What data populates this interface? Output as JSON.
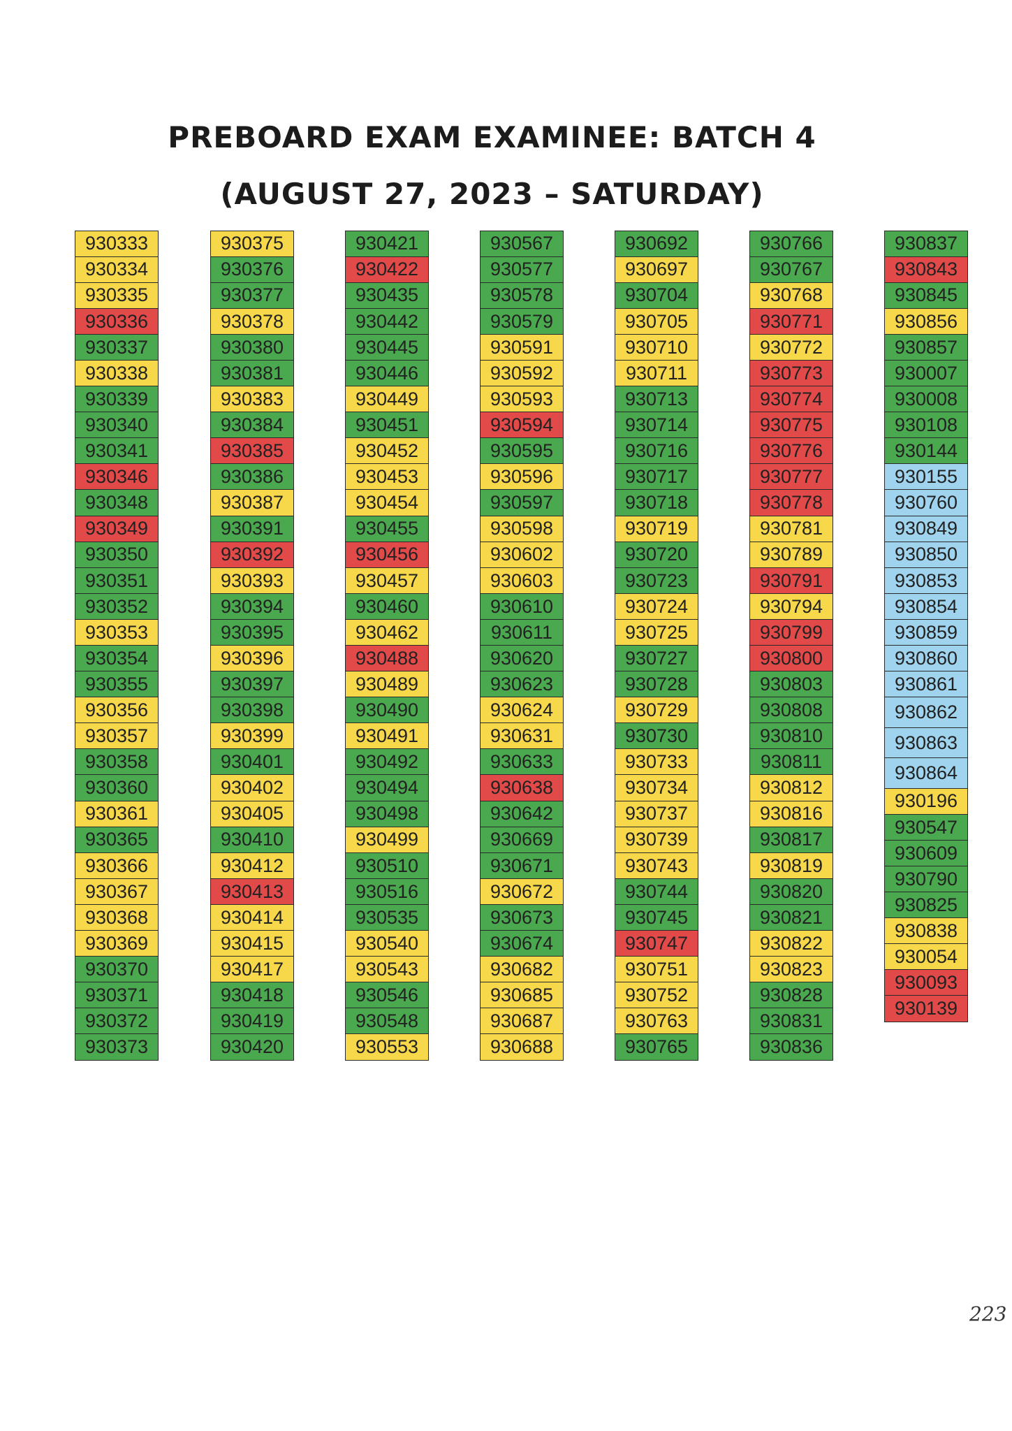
{
  "header": {
    "title": "PREBOARD EXAM EXAMINEE: BATCH 4",
    "subtitle": "(AUGUST 27, 2023 – SATURDAY)"
  },
  "colors": {
    "y": "#f6d84a",
    "g": "#4aa84e",
    "r": "#e24a4a",
    "b": "#9fd3ee"
  },
  "columns": [
    [
      [
        "930333",
        "y"
      ],
      [
        "930334",
        "y"
      ],
      [
        "930335",
        "y"
      ],
      [
        "930336",
        "r"
      ],
      [
        "930337",
        "g"
      ],
      [
        "930338",
        "y"
      ],
      [
        "930339",
        "g"
      ],
      [
        "930340",
        "g"
      ],
      [
        "930341",
        "g"
      ],
      [
        "930346",
        "r"
      ],
      [
        "930348",
        "g"
      ],
      [
        "930349",
        "r"
      ],
      [
        "930350",
        "g"
      ],
      [
        "930351",
        "g"
      ],
      [
        "930352",
        "g"
      ],
      [
        "930353",
        "y"
      ],
      [
        "930354",
        "g"
      ],
      [
        "930355",
        "g"
      ],
      [
        "930356",
        "y"
      ],
      [
        "930357",
        "y"
      ],
      [
        "930358",
        "g"
      ],
      [
        "930360",
        "g"
      ],
      [
        "930361",
        "y"
      ],
      [
        "930365",
        "g"
      ],
      [
        "930366",
        "y"
      ],
      [
        "930367",
        "y"
      ],
      [
        "930368",
        "y"
      ],
      [
        "930369",
        "y"
      ],
      [
        "930370",
        "g"
      ],
      [
        "930371",
        "g"
      ],
      [
        "930372",
        "g"
      ],
      [
        "930373",
        "g"
      ]
    ],
    [
      [
        "930375",
        "y"
      ],
      [
        "930376",
        "g"
      ],
      [
        "930377",
        "g"
      ],
      [
        "930378",
        "y"
      ],
      [
        "930380",
        "g"
      ],
      [
        "930381",
        "g"
      ],
      [
        "930383",
        "y"
      ],
      [
        "930384",
        "g"
      ],
      [
        "930385",
        "r"
      ],
      [
        "930386",
        "g"
      ],
      [
        "930387",
        "y"
      ],
      [
        "930391",
        "g"
      ],
      [
        "930392",
        "r"
      ],
      [
        "930393",
        "y"
      ],
      [
        "930394",
        "g"
      ],
      [
        "930395",
        "g"
      ],
      [
        "930396",
        "y"
      ],
      [
        "930397",
        "g"
      ],
      [
        "930398",
        "g"
      ],
      [
        "930399",
        "y"
      ],
      [
        "930401",
        "g"
      ],
      [
        "930402",
        "y"
      ],
      [
        "930405",
        "y"
      ],
      [
        "930410",
        "g"
      ],
      [
        "930412",
        "y"
      ],
      [
        "930413",
        "r"
      ],
      [
        "930414",
        "y"
      ],
      [
        "930415",
        "y"
      ],
      [
        "930417",
        "y"
      ],
      [
        "930418",
        "g"
      ],
      [
        "930419",
        "g"
      ],
      [
        "930420",
        "g"
      ]
    ],
    [
      [
        "930421",
        "g"
      ],
      [
        "930422",
        "r"
      ],
      [
        "930435",
        "g"
      ],
      [
        "930442",
        "g"
      ],
      [
        "930445",
        "g"
      ],
      [
        "930446",
        "g"
      ],
      [
        "930449",
        "y"
      ],
      [
        "930451",
        "g"
      ],
      [
        "930452",
        "y"
      ],
      [
        "930453",
        "y"
      ],
      [
        "930454",
        "y"
      ],
      [
        "930455",
        "g"
      ],
      [
        "930456",
        "r"
      ],
      [
        "930457",
        "y"
      ],
      [
        "930460",
        "g"
      ],
      [
        "930462",
        "y"
      ],
      [
        "930488",
        "r"
      ],
      [
        "930489",
        "y"
      ],
      [
        "930490",
        "g"
      ],
      [
        "930491",
        "y"
      ],
      [
        "930492",
        "g"
      ],
      [
        "930494",
        "g"
      ],
      [
        "930498",
        "g"
      ],
      [
        "930499",
        "y"
      ],
      [
        "930510",
        "g"
      ],
      [
        "930516",
        "g"
      ],
      [
        "930535",
        "g"
      ],
      [
        "930540",
        "y"
      ],
      [
        "930543",
        "y"
      ],
      [
        "930546",
        "g"
      ],
      [
        "930548",
        "g"
      ],
      [
        "930553",
        "y"
      ]
    ],
    [
      [
        "930567",
        "g"
      ],
      [
        "930577",
        "g"
      ],
      [
        "930578",
        "g"
      ],
      [
        "930579",
        "g"
      ],
      [
        "930591",
        "y"
      ],
      [
        "930592",
        "y"
      ],
      [
        "930593",
        "y"
      ],
      [
        "930594",
        "r"
      ],
      [
        "930595",
        "g"
      ],
      [
        "930596",
        "y"
      ],
      [
        "930597",
        "g"
      ],
      [
        "930598",
        "y"
      ],
      [
        "930602",
        "y"
      ],
      [
        "930603",
        "y"
      ],
      [
        "930610",
        "g"
      ],
      [
        "930611",
        "g"
      ],
      [
        "930620",
        "g"
      ],
      [
        "930623",
        "g"
      ],
      [
        "930624",
        "y"
      ],
      [
        "930631",
        "y"
      ],
      [
        "930633",
        "g"
      ],
      [
        "930638",
        "r"
      ],
      [
        "930642",
        "g"
      ],
      [
        "930669",
        "g"
      ],
      [
        "930671",
        "g"
      ],
      [
        "930672",
        "y"
      ],
      [
        "930673",
        "g"
      ],
      [
        "930674",
        "g"
      ],
      [
        "930682",
        "y"
      ],
      [
        "930685",
        "y"
      ],
      [
        "930687",
        "y"
      ],
      [
        "930688",
        "y"
      ]
    ],
    [
      [
        "930692",
        "g"
      ],
      [
        "930697",
        "y"
      ],
      [
        "930704",
        "g"
      ],
      [
        "930705",
        "y"
      ],
      [
        "930710",
        "y"
      ],
      [
        "930711",
        "y"
      ],
      [
        "930713",
        "g"
      ],
      [
        "930714",
        "g"
      ],
      [
        "930716",
        "g"
      ],
      [
        "930717",
        "g"
      ],
      [
        "930718",
        "g"
      ],
      [
        "930719",
        "y"
      ],
      [
        "930720",
        "g"
      ],
      [
        "930723",
        "g"
      ],
      [
        "930724",
        "y"
      ],
      [
        "930725",
        "y"
      ],
      [
        "930727",
        "g"
      ],
      [
        "930728",
        "g"
      ],
      [
        "930729",
        "y"
      ],
      [
        "930730",
        "g"
      ],
      [
        "930733",
        "y"
      ],
      [
        "930734",
        "y"
      ],
      [
        "930737",
        "y"
      ],
      [
        "930739",
        "y"
      ],
      [
        "930743",
        "y"
      ],
      [
        "930744",
        "g"
      ],
      [
        "930745",
        "g"
      ],
      [
        "930747",
        "r"
      ],
      [
        "930751",
        "y"
      ],
      [
        "930752",
        "y"
      ],
      [
        "930763",
        "y"
      ],
      [
        "930765",
        "g"
      ]
    ],
    [
      [
        "930766",
        "g"
      ],
      [
        "930767",
        "g"
      ],
      [
        "930768",
        "y"
      ],
      [
        "930771",
        "r"
      ],
      [
        "930772",
        "y"
      ],
      [
        "930773",
        "r"
      ],
      [
        "930774",
        "r"
      ],
      [
        "930775",
        "r"
      ],
      [
        "930776",
        "r"
      ],
      [
        "930777",
        "r"
      ],
      [
        "930778",
        "r"
      ],
      [
        "930781",
        "y"
      ],
      [
        "930789",
        "y"
      ],
      [
        "930791",
        "r"
      ],
      [
        "930794",
        "y"
      ],
      [
        "930799",
        "r"
      ],
      [
        "930800",
        "r"
      ],
      [
        "930803",
        "g"
      ],
      [
        "930808",
        "g"
      ],
      [
        "930810",
        "g"
      ],
      [
        "930811",
        "g"
      ],
      [
        "930812",
        "y"
      ],
      [
        "930816",
        "y"
      ],
      [
        "930817",
        "g"
      ],
      [
        "930819",
        "y"
      ],
      [
        "930820",
        "g"
      ],
      [
        "930821",
        "g"
      ],
      [
        "930822",
        "y"
      ],
      [
        "930823",
        "y"
      ],
      [
        "930828",
        "g"
      ],
      [
        "930831",
        "g"
      ],
      [
        "930836",
        "g"
      ]
    ],
    [
      [
        "930837",
        "g"
      ],
      [
        "930843",
        "r"
      ],
      [
        "930845",
        "g"
      ],
      [
        "930856",
        "y"
      ],
      [
        "930857",
        "g"
      ],
      [
        "930007",
        "g"
      ],
      [
        "930008",
        "g"
      ],
      [
        "930108",
        "g"
      ],
      [
        "930144",
        "g"
      ],
      [
        "930155",
        "b"
      ],
      [
        "930760",
        "b"
      ],
      [
        "930849",
        "b"
      ],
      [
        "930850",
        "b"
      ],
      [
        "930853",
        "b"
      ],
      [
        "930854",
        "b"
      ],
      [
        "930859",
        "b"
      ],
      [
        "930860",
        "b"
      ],
      [
        "930861",
        "b"
      ],
      [
        "930862",
        "b",
        "tall"
      ],
      [
        "930863",
        "b",
        "tall"
      ],
      [
        "930864",
        "b",
        "tall"
      ],
      [
        "930196",
        "y"
      ],
      [
        "930547",
        "g"
      ],
      [
        "930609",
        "g"
      ],
      [
        "930790",
        "g"
      ],
      [
        "930825",
        "g"
      ],
      [
        "930838",
        "y"
      ],
      [
        "930054",
        "y"
      ],
      [
        "930093",
        "r"
      ],
      [
        "930139",
        "r"
      ]
    ]
  ],
  "page_number": "223"
}
